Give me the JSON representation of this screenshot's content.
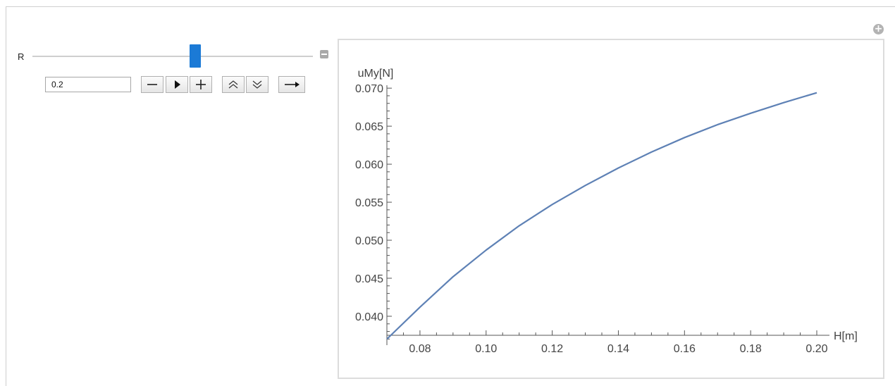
{
  "manipulate": {
    "control": {
      "label": "R",
      "value": 0.2,
      "value_text": "0.2",
      "slider_fraction": 0.58
    },
    "buttons": {
      "decrement": "minus-icon",
      "play": "play-icon",
      "increment": "plus-icon",
      "faster": "double-chevron-up-icon",
      "slower": "double-chevron-down-icon",
      "direction": "right-arrow-icon"
    },
    "accent_color": "#1b7ad6"
  },
  "chart_data": {
    "type": "line",
    "xlabel": "H[m]",
    "ylabel": "uMy[N]",
    "xlim": [
      0.07,
      0.2
    ],
    "ylim": [
      0.0362,
      0.0702
    ],
    "xticks": [
      0.08,
      0.1,
      0.12,
      0.14,
      0.16,
      0.18,
      0.2
    ],
    "xtick_labels": [
      "0.08",
      "0.10",
      "0.12",
      "0.14",
      "0.16",
      "0.18",
      "0.20"
    ],
    "yticks": [
      0.04,
      0.045,
      0.05,
      0.055,
      0.06,
      0.065,
      0.07
    ],
    "ytick_labels": [
      "0.040",
      "0.045",
      "0.050",
      "0.055",
      "0.060",
      "0.065",
      "0.070"
    ],
    "axis_origin": [
      0.07,
      0.0375
    ],
    "grid": false,
    "series": [
      {
        "color": "#5e81b5",
        "x": [
          0.07,
          0.08,
          0.09,
          0.1,
          0.11,
          0.12,
          0.13,
          0.14,
          0.15,
          0.16,
          0.17,
          0.18,
          0.19,
          0.2
        ],
        "y": [
          0.037,
          0.0412,
          0.0452,
          0.0487,
          0.0519,
          0.0547,
          0.0572,
          0.0595,
          0.0616,
          0.0635,
          0.0652,
          0.0667,
          0.0681,
          0.0694
        ]
      }
    ]
  }
}
